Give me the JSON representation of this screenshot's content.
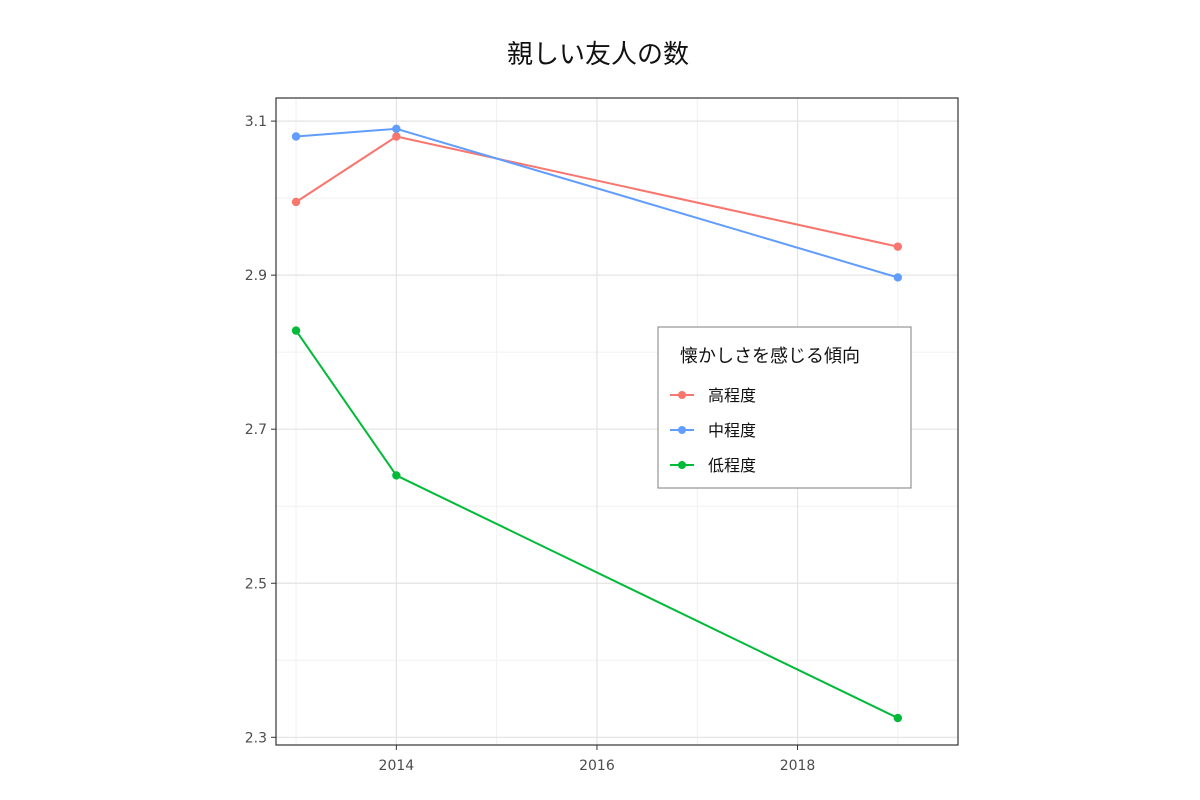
{
  "chart_data": {
    "type": "line",
    "title": "親しい友人の数",
    "xlabel": "",
    "ylabel": "",
    "xlim": [
      2012.8,
      2019.6
    ],
    "ylim": [
      2.29,
      3.13
    ],
    "x_ticks": [
      2014,
      2016,
      2018
    ],
    "x_tick_labels": [
      "2014",
      "2016",
      "2018"
    ],
    "y_ticks": [
      2.3,
      2.5,
      2.7,
      2.9,
      3.1
    ],
    "y_tick_labels": [
      "2.3",
      "2.5",
      "2.7",
      "2.9",
      "3.1"
    ],
    "grid": true,
    "legend": {
      "title": "懐かしさを感じる傾向",
      "position": "right-inside"
    },
    "x": [
      2013,
      2014,
      2019
    ],
    "series": [
      {
        "name": "高程度",
        "color": "#F8766D",
        "values": [
          2.995,
          3.08,
          2.937
        ]
      },
      {
        "name": "中程度",
        "color": "#619CFF",
        "values": [
          3.08,
          3.09,
          2.897
        ]
      },
      {
        "name": "低程度",
        "color": "#00BA38",
        "values": [
          2.828,
          2.64,
          2.325
        ]
      }
    ]
  }
}
